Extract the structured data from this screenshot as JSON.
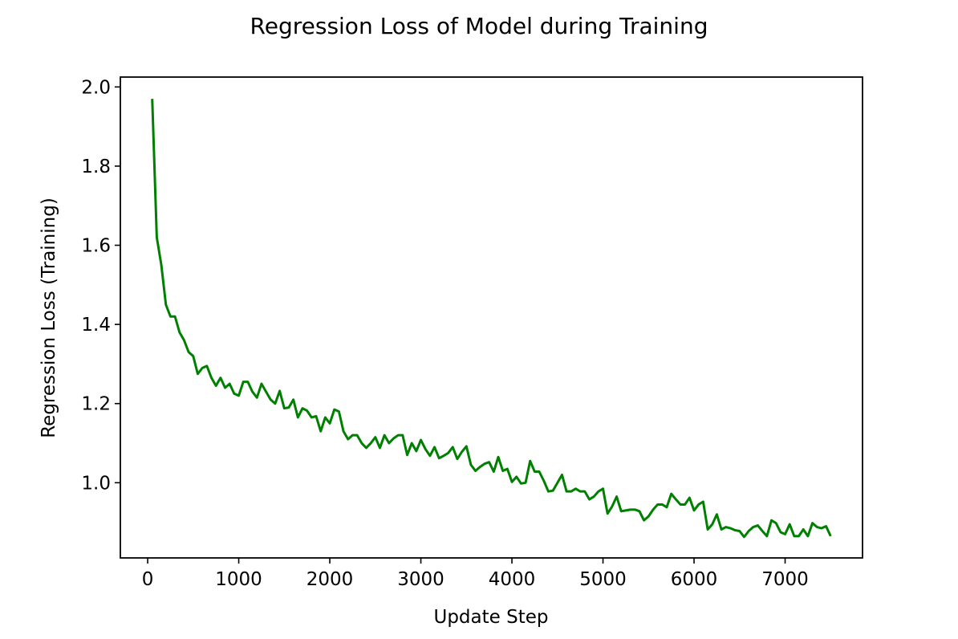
{
  "chart_data": {
    "type": "line",
    "title": "Regression Loss of Model during Training",
    "xlabel": "Update Step",
    "ylabel": "Regression Loss (Training)",
    "xlim": [
      -300,
      7850
    ],
    "ylim": [
      0.81,
      2.025
    ],
    "xticks": [
      0,
      1000,
      2000,
      3000,
      4000,
      5000,
      6000,
      7000
    ],
    "yticks": [
      1.0,
      1.2,
      1.4,
      1.6,
      1.8,
      2.0
    ],
    "xtick_labels": [
      "0",
      "1000",
      "2000",
      "3000",
      "4000",
      "5000",
      "6000",
      "7000"
    ],
    "ytick_labels": [
      "1.0",
      "1.2",
      "1.4",
      "1.6",
      "1.8",
      "2.0"
    ],
    "grid": false,
    "colors": {
      "line": "#008000",
      "axes": "#000000",
      "background": "#ffffff"
    },
    "series": [
      {
        "x": [
          50,
          100,
          150,
          200,
          250,
          300,
          350,
          400,
          450,
          500,
          550,
          600,
          650,
          700,
          750,
          800,
          850,
          900,
          950,
          1000,
          1050,
          1100,
          1150,
          1200,
          1250,
          1300,
          1350,
          1400,
          1450,
          1500,
          1550,
          1600,
          1650,
          1700,
          1750,
          1800,
          1850,
          1900,
          1950,
          2000,
          2050,
          2100,
          2150,
          2200,
          2250,
          2300,
          2350,
          2400,
          2450,
          2500,
          2550,
          2600,
          2650,
          2700,
          2750,
          2800,
          2850,
          2900,
          2950,
          3000,
          3050,
          3100,
          3150,
          3200,
          3250,
          3300,
          3350,
          3400,
          3450,
          3500,
          3550,
          3600,
          3650,
          3700,
          3750,
          3800,
          3850,
          3900,
          3950,
          4000,
          4050,
          4100,
          4150,
          4200,
          4250,
          4300,
          4350,
          4400,
          4450,
          4500,
          4550,
          4600,
          4650,
          4700,
          4750,
          4800,
          4850,
          4900,
          4950,
          5000,
          5050,
          5100,
          5150,
          5200,
          5250,
          5300,
          5350,
          5400,
          5450,
          5500,
          5550,
          5600,
          5650,
          5700,
          5750,
          5800,
          5850,
          5900,
          5950,
          6000,
          6050,
          6100,
          6150,
          6200,
          6250,
          6300,
          6350,
          6400,
          6450,
          6500,
          6550,
          6600,
          6650,
          6700,
          6750,
          6800,
          6850,
          6900,
          6950,
          7000,
          7050,
          7100,
          7150,
          7200,
          7250,
          7300,
          7350,
          7400,
          7450,
          7500
        ],
        "values": [
          1.97,
          1.62,
          1.55,
          1.45,
          1.42,
          1.42,
          1.38,
          1.36,
          1.33,
          1.32,
          1.275,
          1.29,
          1.295,
          1.265,
          1.245,
          1.265,
          1.24,
          1.25,
          1.225,
          1.22,
          1.255,
          1.255,
          1.23,
          1.215,
          1.25,
          1.23,
          1.21,
          1.2,
          1.232,
          1.188,
          1.19,
          1.21,
          1.165,
          1.188,
          1.182,
          1.165,
          1.168,
          1.13,
          1.165,
          1.15,
          1.185,
          1.18,
          1.13,
          1.11,
          1.12,
          1.12,
          1.1,
          1.088,
          1.1,
          1.115,
          1.088,
          1.12,
          1.1,
          1.112,
          1.12,
          1.12,
          1.07,
          1.1,
          1.08,
          1.108,
          1.085,
          1.068,
          1.09,
          1.062,
          1.068,
          1.075,
          1.09,
          1.06,
          1.078,
          1.092,
          1.045,
          1.03,
          1.04,
          1.048,
          1.052,
          1.028,
          1.065,
          1.03,
          1.035,
          1.002,
          1.015,
          0.998,
          1.0,
          1.055,
          1.028,
          1.028,
          1.005,
          0.978,
          0.98,
          1.0,
          1.02,
          0.978,
          0.978,
          0.985,
          0.978,
          0.978,
          0.958,
          0.965,
          0.978,
          0.985,
          0.922,
          0.94,
          0.965,
          0.928,
          0.93,
          0.932,
          0.932,
          0.928,
          0.905,
          0.915,
          0.932,
          0.945,
          0.945,
          0.938,
          0.972,
          0.958,
          0.945,
          0.945,
          0.962,
          0.93,
          0.945,
          0.952,
          0.882,
          0.895,
          0.92,
          0.882,
          0.888,
          0.885,
          0.88,
          0.878,
          0.863,
          0.878,
          0.888,
          0.892,
          0.878,
          0.865,
          0.905,
          0.898,
          0.875,
          0.87,
          0.895,
          0.865,
          0.865,
          0.882,
          0.865,
          0.898,
          0.888,
          0.885,
          0.89,
          0.865
        ]
      }
    ]
  }
}
